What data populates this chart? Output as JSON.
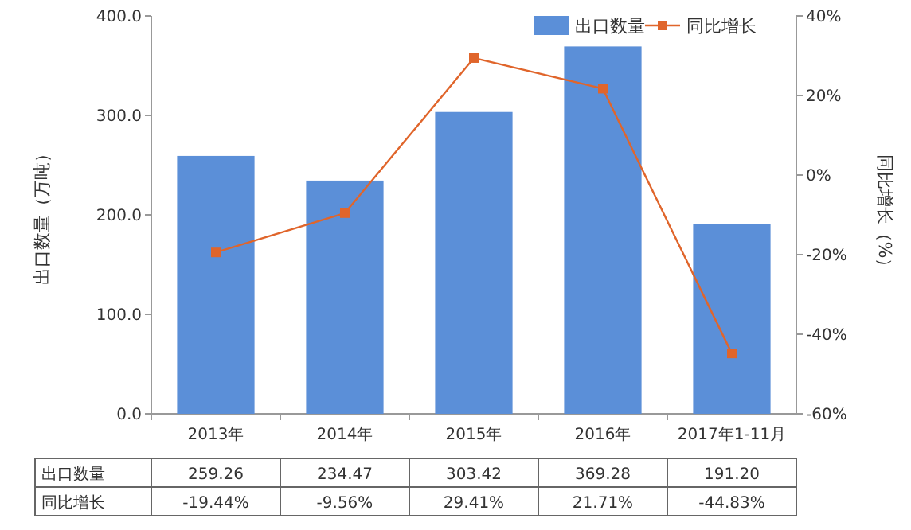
{
  "chart_data": {
    "type": "bar",
    "ylabel": "出口数量（万吨）",
    "y2label": "同比增长（%）",
    "categories": [
      "2013年",
      "2014年",
      "2015年",
      "2016年",
      "2017年1-11月"
    ],
    "series": [
      {
        "name": "出口数量",
        "color": "#5b8fd8",
        "values": [
          259.26,
          234.47,
          303.42,
          369.28,
          191.2
        ],
        "value_labels": [
          "259.26",
          "234.47",
          "303.42",
          "369.28",
          "191.20"
        ]
      },
      {
        "name": "同比增长",
        "type": "line",
        "axis": "y2",
        "color": "#e0652b",
        "marker": "square",
        "values": [
          -19.44,
          -9.56,
          29.41,
          21.71,
          -44.83
        ],
        "value_labels": [
          "-19.44%",
          "-9.56%",
          "29.41%",
          "21.71%",
          "-44.83%"
        ]
      }
    ],
    "ylim": [
      0,
      400
    ],
    "yticks": [
      {
        "value": 0,
        "label": "0.0"
      },
      {
        "value": 100,
        "label": "100.0"
      },
      {
        "value": 200,
        "label": "200.0"
      },
      {
        "value": 300,
        "label": "300.0"
      },
      {
        "value": 400,
        "label": "400.0"
      }
    ],
    "y2lim": [
      -60,
      40
    ],
    "y2ticks": [
      {
        "value": -60,
        "label": "-60%"
      },
      {
        "value": -40,
        "label": "-40%"
      },
      {
        "value": -20,
        "label": "-20%"
      },
      {
        "value": 0,
        "label": "0%"
      },
      {
        "value": 20,
        "label": "20%"
      },
      {
        "value": 40,
        "label": "40%"
      }
    ],
    "legend": "top right",
    "grid": false
  }
}
